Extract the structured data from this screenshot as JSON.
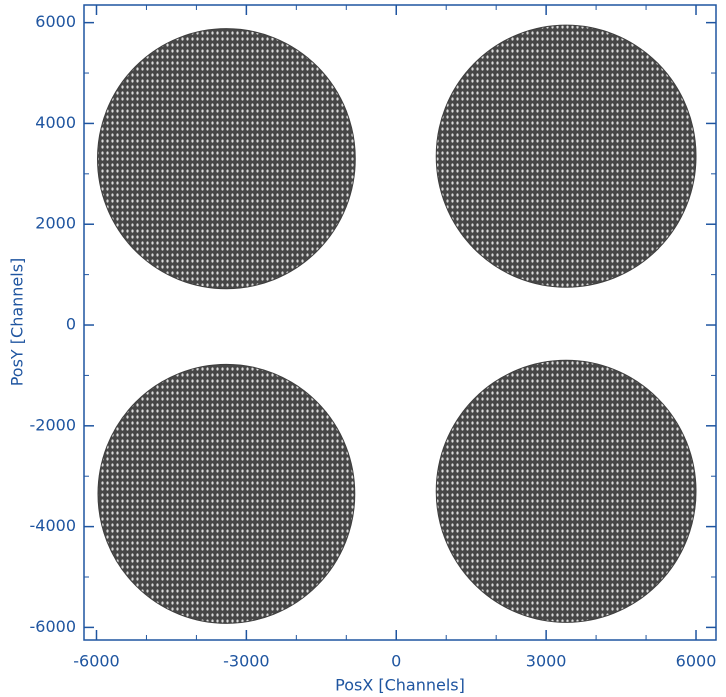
{
  "chart_data": {
    "type": "density",
    "x_label": "PosX [Channels]",
    "y_label": "PosY [Channels]",
    "xlim": [
      -6250,
      6400
    ],
    "ylim": [
      -6250,
      6350
    ],
    "xticks": [
      -6000,
      -3000,
      0,
      3000,
      6000
    ],
    "yticks": [
      -6000,
      -4000,
      -2000,
      0,
      2000,
      4000,
      6000
    ],
    "xminorticks": [
      -5000,
      -4000,
      -2000,
      -1000,
      1000,
      2000,
      4000,
      5000
    ],
    "yminorticks": [
      -5000,
      -3000,
      -1000,
      1000,
      3000,
      5000
    ],
    "color": "#2a2a2a",
    "axis_color": "#1f55a0",
    "discs": [
      {
        "cx": -3400,
        "cy": 3300,
        "r": 2580
      },
      {
        "cx": 3400,
        "cy": 3350,
        "r": 2600
      },
      {
        "cx": -3400,
        "cy": -3350,
        "r": 2570
      },
      {
        "cx": 3400,
        "cy": -3300,
        "r": 2600
      }
    ]
  }
}
